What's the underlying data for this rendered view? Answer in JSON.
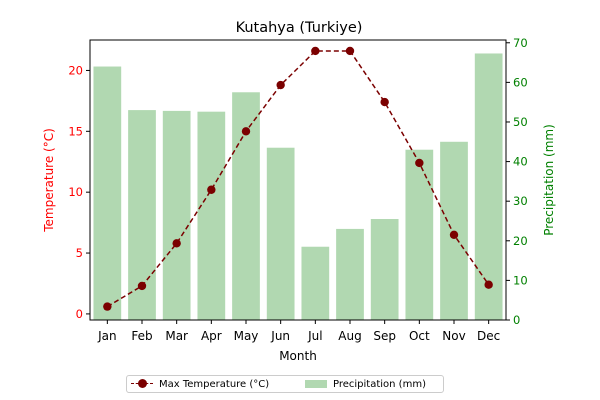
{
  "chart_data": {
    "type": "bar",
    "title": "Kutahya (Turkiye)",
    "xlabel": "Month",
    "ylabel_left": "Temperature (°C)",
    "ylabel_right": "Precipitation (mm)",
    "categories": [
      "Jan",
      "Feb",
      "Mar",
      "Apr",
      "May",
      "Jun",
      "Jul",
      "Aug",
      "Sep",
      "Oct",
      "Nov",
      "Dec"
    ],
    "series": [
      {
        "name": "Max Temperature (°C)",
        "type": "line",
        "axis": "left",
        "style": "dashed-with-markers",
        "color": "#7b0000",
        "values": [
          0.6,
          2.3,
          5.8,
          10.2,
          15.0,
          18.8,
          21.6,
          21.6,
          17.4,
          12.4,
          6.5,
          2.4
        ]
      },
      {
        "name": "Precipitation (mm)",
        "type": "bar",
        "axis": "right",
        "color": "#b1d8b1",
        "values": [
          64.0,
          53.0,
          52.8,
          52.6,
          57.5,
          43.5,
          18.5,
          23.0,
          25.5,
          43.0,
          45.0,
          67.3
        ]
      }
    ],
    "y_left_lim": [
      -0.5,
      22.5
    ],
    "y_left_ticks": [
      0,
      5,
      10,
      15,
      20
    ],
    "y_right_lim": [
      0,
      70.7
    ],
    "y_right_ticks": [
      0,
      10,
      20,
      30,
      40,
      50,
      60,
      70
    ],
    "left_axis_color": "#ff0000",
    "right_axis_color": "#008000",
    "grid": false,
    "legend_position": "bottom-center"
  }
}
